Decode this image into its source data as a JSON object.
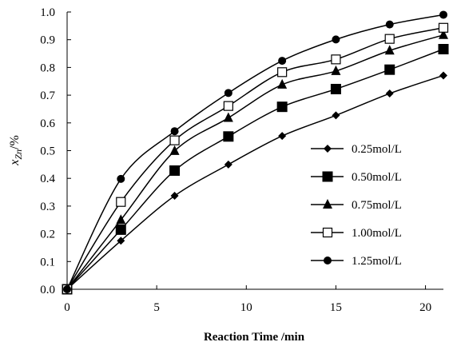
{
  "chart_data": {
    "type": "line",
    "xlabel": "Reaction Time /min",
    "ylabel": {
      "main": "x",
      "subscript": "Zn",
      "suffix": "/%"
    },
    "xlim": [
      0,
      21
    ],
    "ylim": [
      0,
      1
    ],
    "xticks": [
      0,
      5,
      10,
      15,
      20
    ],
    "xtick_labels": [
      "0",
      "5",
      "10",
      "15",
      "20"
    ],
    "yticks": [
      0,
      0.1,
      0.2,
      0.3,
      0.4,
      0.5,
      0.6,
      0.7,
      0.8,
      0.9,
      1.0
    ],
    "ytick_labels": [
      "0.0",
      "0.1",
      "0.2",
      "0.3",
      "0.4",
      "0.5",
      "0.6",
      "0.7",
      "0.8",
      "0.9",
      "1.0"
    ],
    "grid": false,
    "legend_position": "lower-right",
    "x": [
      0,
      3,
      6,
      9,
      12,
      15,
      18,
      21
    ],
    "series": [
      {
        "name": "0.25mol/L",
        "marker": "diamond",
        "values": [
          0.0,
          0.175,
          0.337,
          0.45,
          0.553,
          0.627,
          0.706,
          0.771
        ]
      },
      {
        "name": "0.50mol/L",
        "marker": "square-filled",
        "values": [
          0.0,
          0.215,
          0.428,
          0.551,
          0.658,
          0.722,
          0.792,
          0.866
        ]
      },
      {
        "name": "0.75mol/L",
        "marker": "triangle",
        "values": [
          0.0,
          0.25,
          0.499,
          0.618,
          0.738,
          0.787,
          0.861,
          0.917
        ]
      },
      {
        "name": "1.00mol/L",
        "marker": "square-open",
        "values": [
          0.0,
          0.315,
          0.537,
          0.661,
          0.783,
          0.829,
          0.903,
          0.943
        ]
      },
      {
        "name": "1.25mol/L",
        "marker": "circle",
        "values": [
          0.0,
          0.398,
          0.57,
          0.708,
          0.824,
          0.901,
          0.955,
          0.99
        ]
      }
    ]
  }
}
